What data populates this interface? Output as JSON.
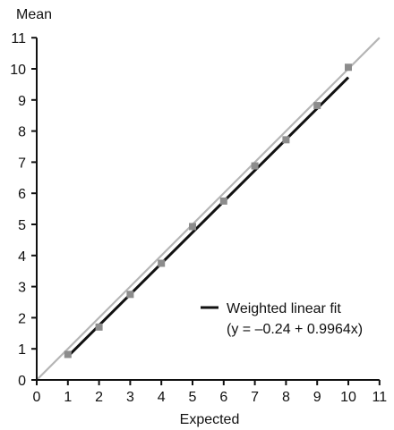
{
  "chart_data": {
    "type": "scatter",
    "title": "",
    "xlabel": "Expected",
    "ylabel": "Mean",
    "xlim": [
      0,
      11
    ],
    "ylim": [
      0,
      11
    ],
    "xticks": [
      0,
      1,
      2,
      3,
      4,
      5,
      6,
      7,
      8,
      9,
      10,
      11
    ],
    "yticks": [
      0,
      1,
      2,
      3,
      4,
      5,
      6,
      7,
      8,
      9,
      10,
      11
    ],
    "grid": false,
    "points": {
      "color": "#8c8c8c",
      "x": [
        1,
        2,
        3,
        4,
        5,
        6,
        7,
        8,
        9,
        10
      ],
      "y": [
        0.82,
        1.7,
        2.75,
        3.75,
        4.93,
        5.75,
        6.88,
        7.72,
        8.82,
        10.05
      ]
    },
    "identity_line": {
      "color": "#b5b5b5",
      "x": [
        0,
        11
      ],
      "y": [
        0,
        11
      ]
    },
    "fit_line": {
      "color": "#111111",
      "intercept": -0.24,
      "slope": 0.9964,
      "x": [
        1,
        10
      ]
    },
    "legend": {
      "label": "Weighted linear fit",
      "equation": "(y = –0.24 + 0.9964x)"
    }
  }
}
